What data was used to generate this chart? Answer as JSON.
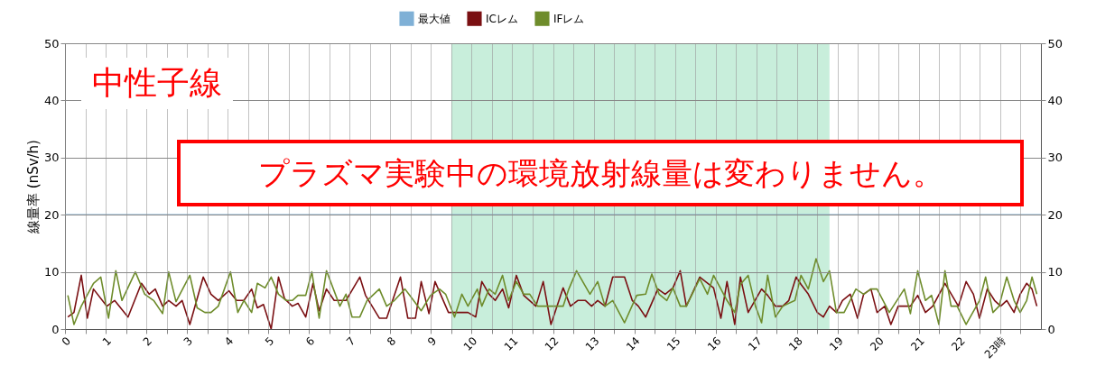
{
  "chart_data": {
    "type": "line",
    "ylabel": "線量率 (nSv/h)",
    "annotations": [
      "中性子線",
      "プラズマ実験中の環境放射線量は変わりません。"
    ],
    "xlim": [
      0,
      24
    ],
    "ylim": [
      0,
      50
    ],
    "yticks": [
      0,
      10,
      20,
      30,
      40,
      50
    ],
    "y2lim": [
      0,
      50
    ],
    "y2ticks": [
      0,
      10,
      20,
      30,
      40,
      50
    ],
    "xticks": [
      0,
      {
        "value": 0.5,
        "label": null
      },
      1,
      {
        "value": 1.5,
        "label": null
      },
      2,
      {
        "value": 2.5,
        "label": null
      },
      3,
      {
        "value": 3.5,
        "label": null
      },
      4,
      {
        "value": 4.5,
        "label": null
      },
      5,
      {
        "value": 5.5,
        "label": null
      },
      6,
      {
        "value": 6.5,
        "label": null
      },
      7,
      {
        "value": 7.5,
        "label": null
      },
      8,
      {
        "value": 8.5,
        "label": null
      },
      9,
      {
        "value": 9.5,
        "label": null
      },
      10,
      {
        "value": 10.5,
        "label": null
      },
      11,
      {
        "value": 11.5,
        "label": null
      },
      12,
      {
        "value": 12.5,
        "label": null
      },
      13,
      {
        "value": 13.5,
        "label": null
      },
      14,
      {
        "value": 14.5,
        "label": null
      },
      15,
      {
        "value": 15.5,
        "label": null
      },
      16,
      {
        "value": 16.5,
        "label": null
      },
      17,
      {
        "value": 17.5,
        "label": null
      },
      18,
      {
        "value": 18.5,
        "label": null
      },
      19,
      {
        "value": 19.5,
        "label": null
      },
      20,
      {
        "value": 20.5,
        "label": null
      },
      21,
      {
        "value": 21.5,
        "label": null
      },
      22,
      {
        "value": 22.5,
        "label": null
      },
      {
        "value": 23,
        "label": "23時"
      },
      {
        "value": 23.5,
        "label": null
      }
    ],
    "grid": true,
    "legend": "top",
    "bands": [
      {
        "axis": "x",
        "from": 9.5,
        "to": 18.8,
        "color": "#c8eedb"
      }
    ],
    "series": [
      {
        "name": "最大値",
        "color": "#7fb0d6",
        "x": [
          0,
          24
        ],
        "values": [
          20,
          20
        ]
      },
      {
        "name": "ICレム",
        "color": "#7a0f12",
        "x": [
          0.07,
          0.22,
          0.4,
          0.55,
          0.7,
          1.03,
          1.22,
          1.55,
          1.88,
          2.07,
          2.22,
          2.4,
          2.55,
          2.73,
          2.88,
          3.07,
          3.4,
          3.59,
          3.77,
          4.03,
          4.22,
          4.4,
          4.59,
          4.73,
          4.88,
          5.07,
          5.25,
          5.4,
          5.59,
          5.73,
          5.92,
          6.1,
          6.25,
          6.43,
          6.62,
          6.91,
          7.25,
          7.39,
          7.73,
          7.91,
          8.25,
          8.43,
          8.62,
          8.76,
          8.95,
          9.1,
          9.43,
          9.91,
          10.1,
          10.25,
          10.43,
          10.58,
          10.76,
          10.91,
          11.1,
          11.28,
          11.58,
          11.76,
          11.95,
          12.25,
          12.43,
          12.61,
          12.8,
          12.95,
          13.1,
          13.28,
          13.47,
          13.76,
          13.95,
          14.1,
          14.28,
          14.58,
          14.76,
          14.95,
          15.13,
          15.28,
          15.61,
          15.95,
          16.13,
          16.28,
          16.47,
          16.61,
          16.8,
          17.13,
          17.28,
          17.47,
          17.65,
          17.8,
          17.98,
          18.1,
          18.28,
          18.5,
          18.65,
          18.8,
          18.97,
          19.12,
          19.31,
          19.49,
          19.64,
          19.82,
          19.97,
          20.16,
          20.31,
          20.49,
          20.79,
          20.97,
          21.16,
          21.34,
          21.64,
          21.97,
          22.16,
          22.34,
          22.49,
          22.68,
          22.86,
          23.01,
          23.16,
          23.34,
          23.49,
          23.65,
          23.78,
          23.9
        ],
        "values": [
          2.1,
          2.9,
          9.4,
          1.9,
          7,
          4,
          5,
          2.1,
          8,
          6.1,
          7,
          4,
          5,
          4,
          5,
          0.8,
          9.1,
          6.1,
          5,
          6.7,
          5,
          5,
          7,
          3.7,
          4.3,
          0,
          9.1,
          5.3,
          4,
          4.5,
          2.1,
          8,
          3.2,
          7,
          5,
          5,
          9.1,
          5.9,
          1.9,
          1.9,
          9.1,
          1.9,
          1.9,
          8.3,
          2.7,
          8.3,
          2.9,
          2.9,
          2.1,
          8.3,
          6.1,
          5,
          7,
          3.7,
          9.4,
          5.9,
          4,
          8.3,
          0.8,
          7.2,
          4,
          5,
          5,
          4,
          5,
          4,
          9.1,
          9.1,
          5,
          4,
          2.1,
          7,
          6.1,
          7.2,
          10.2,
          4,
          9.1,
          7.2,
          1.9,
          8.3,
          0.8,
          9.1,
          2.9,
          7,
          5.9,
          4,
          4,
          5,
          9.1,
          7.8,
          6.1,
          2.9,
          2.1,
          4,
          2.9,
          5,
          6.1,
          1.9,
          6.1,
          7,
          2.9,
          4,
          0.8,
          4,
          4,
          5.9,
          2.9,
          4,
          8,
          4,
          8.3,
          6.1,
          1.9,
          7,
          5,
          4,
          5,
          2.9,
          6.1,
          8,
          7,
          4
        ]
      },
      {
        "name": "IFレム",
        "color": "#6e8c2b",
        "x": [
          0.07,
          0.22,
          0.4,
          0.7,
          0.88,
          1.07,
          1.25,
          1.4,
          1.73,
          1.96,
          2.18,
          2.4,
          2.55,
          2.73,
          3.07,
          3.25,
          3.44,
          3.59,
          3.77,
          4.07,
          4.25,
          4.4,
          4.59,
          4.73,
          4.92,
          5.07,
          5.25,
          5.44,
          5.59,
          5.73,
          5.92,
          6.07,
          6.25,
          6.43,
          6.76,
          6.91,
          7.06,
          7.25,
          7.43,
          7.73,
          7.91,
          8.1,
          8.36,
          8.51,
          8.76,
          8.99,
          9.21,
          9.36,
          9.58,
          9.76,
          9.91,
          10.14,
          10.25,
          10.43,
          10.58,
          10.76,
          10.91,
          11.1,
          11.28,
          11.43,
          11.62,
          11.8,
          12.06,
          12.25,
          12.39,
          12.58,
          12.91,
          13.1,
          13.28,
          13.47,
          13.76,
          14.06,
          14.28,
          14.43,
          14.61,
          14.8,
          14.95,
          15.13,
          15.28,
          15.61,
          15.8,
          15.95,
          16.13,
          16.28,
          16.47,
          16.61,
          16.8,
          16.98,
          17.13,
          17.28,
          17.47,
          17.65,
          17.95,
          18.1,
          18.28,
          18.47,
          18.65,
          18.8,
          18.97,
          19.16,
          19.45,
          19.64,
          19.82,
          19.97,
          20.27,
          20.64,
          20.79,
          20.97,
          21.16,
          21.31,
          21.49,
          21.64,
          21.79,
          21.94,
          22.16,
          22.49,
          22.64,
          22.82,
          22.97,
          23.16,
          23.34,
          23.49,
          23.65,
          23.78,
          23.9
        ],
        "values": [
          5.9,
          0.8,
          4,
          8,
          9.1,
          1.9,
          10.2,
          5,
          10,
          6.1,
          5,
          2.7,
          10,
          4.8,
          9.4,
          3.7,
          2.9,
          2.9,
          4,
          10,
          2.9,
          5,
          2.9,
          8,
          7.2,
          9.1,
          6.1,
          5,
          5,
          5.9,
          5.9,
          10,
          1.9,
          10.2,
          4,
          6.1,
          2.1,
          2.1,
          5,
          7,
          4,
          5,
          7,
          5.6,
          3.2,
          5.9,
          7,
          6.1,
          2.1,
          6.1,
          4,
          7,
          4,
          7,
          6.1,
          9.4,
          5,
          8.3,
          6.1,
          6.1,
          4,
          4,
          4,
          4,
          7,
          10.2,
          6.1,
          8.3,
          4,
          5,
          1.1,
          5.9,
          6.1,
          9.6,
          6.1,
          5,
          7.2,
          4,
          4,
          8.8,
          6.1,
          9.4,
          7,
          5,
          2.9,
          7.8,
          9.4,
          4,
          1.1,
          9.4,
          2.1,
          4,
          5,
          9.4,
          7,
          12.3,
          8.3,
          10.2,
          2.9,
          2.9,
          7,
          6.1,
          7,
          7,
          2.9,
          7,
          2.7,
          10.2,
          5,
          5.9,
          0.8,
          10.2,
          4,
          4,
          0.8,
          5,
          9.1,
          2.9,
          4,
          9.1,
          5,
          2.9,
          5,
          9.1,
          6.1
        ]
      }
    ]
  }
}
